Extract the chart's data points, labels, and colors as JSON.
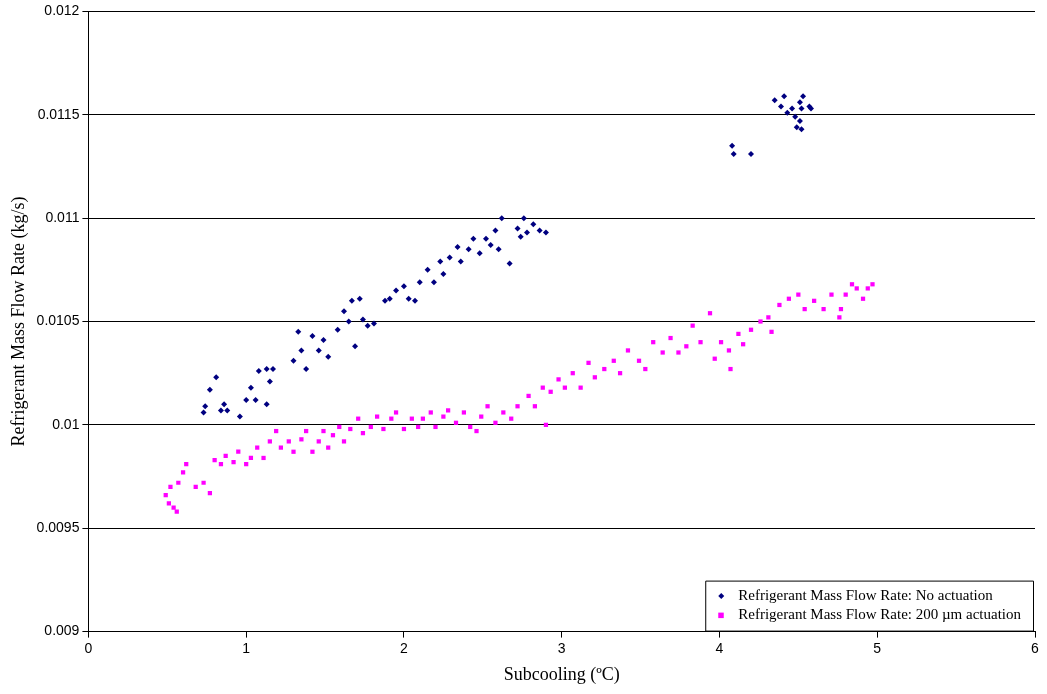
{
  "chart_data": {
    "type": "scatter",
    "xlabel": "Subcooling (ºC)",
    "ylabel": "Refrigerant Mass Flow Rate (kg/s)",
    "xlim": [
      0,
      6
    ],
    "xticks": [
      0,
      1,
      2,
      3,
      4,
      5,
      6
    ],
    "ylim": [
      0.009,
      0.012
    ],
    "yticks": [
      0.009,
      0.0095,
      0.01,
      0.0105,
      0.011,
      0.0115,
      0.012
    ],
    "grid": "y",
    "legend": "bottom right",
    "series": [
      {
        "name": "Refrigerant Mass Flow Rate: No actuation",
        "color": "#000080",
        "marker": "diamond",
        "x": [
          0.73,
          0.74,
          0.77,
          0.81,
          0.84,
          0.88,
          0.86,
          0.96,
          1.0,
          1.03,
          1.06,
          1.08,
          1.13,
          1.13,
          1.15,
          1.17,
          1.3,
          1.33,
          1.35,
          1.38,
          1.42,
          1.46,
          1.49,
          1.52,
          1.58,
          1.62,
          1.65,
          1.67,
          1.69,
          1.72,
          1.74,
          1.77,
          1.81,
          1.88,
          1.91,
          1.95,
          2.0,
          2.03,
          2.07,
          2.1,
          2.15,
          2.19,
          2.23,
          2.25,
          2.29,
          2.34,
          2.36,
          2.41,
          2.44,
          2.48,
          2.52,
          2.55,
          2.58,
          2.6,
          2.62,
          2.67,
          2.72,
          2.76,
          2.78,
          2.82,
          2.86,
          2.9,
          2.74,
          4.08,
          4.09,
          4.2,
          4.35,
          4.41,
          4.39,
          4.43,
          4.46,
          4.48,
          4.51,
          4.49,
          4.51,
          4.52,
          4.53,
          4.58,
          4.52,
          4.57
        ],
        "values": [
          0.01006,
          0.01009,
          0.01017,
          0.01023,
          0.01007,
          0.01007,
          0.0101,
          0.01004,
          0.01012,
          0.01018,
          0.01012,
          0.01026,
          0.01027,
          0.0101,
          0.01021,
          0.01027,
          0.01031,
          0.01045,
          0.01036,
          0.01027,
          0.01043,
          0.01036,
          0.01041,
          0.01033,
          0.01046,
          0.01055,
          0.0105,
          0.0106,
          0.01038,
          0.01061,
          0.01051,
          0.01048,
          0.01049,
          0.0106,
          0.01061,
          0.01065,
          0.01067,
          0.01061,
          0.0106,
          0.01069,
          0.01075,
          0.01069,
          0.01079,
          0.01073,
          0.01081,
          0.01086,
          0.01079,
          0.01085,
          0.0109,
          0.01083,
          0.0109,
          0.01087,
          0.01094,
          0.01085,
          0.011,
          0.01078,
          0.01095,
          0.011,
          0.01093,
          0.01097,
          0.01094,
          0.01093,
          0.01091,
          0.01135,
          0.01131,
          0.01131,
          0.01157,
          0.01159,
          0.01154,
          0.01151,
          0.01153,
          0.01149,
          0.01147,
          0.01144,
          0.01156,
          0.01153,
          0.01159,
          0.01153,
          0.01143,
          0.01154
        ]
      },
      {
        "name": "Refrigerant Mass Flow Rate: 200 µm actuation",
        "color": "#ff00ff",
        "marker": "square",
        "x": [
          0.49,
          0.51,
          0.54,
          0.56,
          0.52,
          0.57,
          0.6,
          0.62,
          0.68,
          0.73,
          0.77,
          0.8,
          0.84,
          0.87,
          0.92,
          0.95,
          1.0,
          1.03,
          1.07,
          1.11,
          1.15,
          1.19,
          1.22,
          1.27,
          1.3,
          1.35,
          1.38,
          1.42,
          1.46,
          1.49,
          1.52,
          1.55,
          1.59,
          1.62,
          1.66,
          1.71,
          1.74,
          1.79,
          1.83,
          1.87,
          1.92,
          1.95,
          2.0,
          2.05,
          2.09,
          2.12,
          2.17,
          2.2,
          2.25,
          2.28,
          2.33,
          2.38,
          2.42,
          2.46,
          2.49,
          2.53,
          2.58,
          2.63,
          2.68,
          2.72,
          2.79,
          2.83,
          2.88,
          2.9,
          2.93,
          2.98,
          3.02,
          3.07,
          3.12,
          3.17,
          3.21,
          3.27,
          3.33,
          3.37,
          3.42,
          3.49,
          3.53,
          3.58,
          3.64,
          3.69,
          3.74,
          3.79,
          3.83,
          3.88,
          3.94,
          3.97,
          4.01,
          4.06,
          4.07,
          4.12,
          4.15,
          4.2,
          4.26,
          4.31,
          4.33,
          4.38,
          4.44,
          4.5,
          4.54,
          4.6,
          4.66,
          4.71,
          4.76,
          4.8,
          4.84,
          4.87,
          4.91,
          4.94,
          4.97,
          4.77
        ],
        "values": [
          0.00966,
          0.00962,
          0.0096,
          0.00958,
          0.0097,
          0.00972,
          0.00977,
          0.00981,
          0.0097,
          0.00972,
          0.00967,
          0.00983,
          0.00981,
          0.00985,
          0.00982,
          0.00987,
          0.00981,
          0.00984,
          0.00989,
          0.00984,
          0.00992,
          0.00997,
          0.00989,
          0.00992,
          0.00987,
          0.00993,
          0.00997,
          0.00987,
          0.00992,
          0.00997,
          0.00989,
          0.00995,
          0.00999,
          0.00992,
          0.00998,
          0.01003,
          0.00996,
          0.00999,
          0.01004,
          0.00998,
          0.01003,
          0.01006,
          0.00998,
          0.01003,
          0.00999,
          0.01003,
          0.01006,
          0.00999,
          0.01004,
          0.01007,
          0.01001,
          0.01006,
          0.00999,
          0.00997,
          0.01004,
          0.01009,
          0.01001,
          0.01006,
          0.01003,
          0.01009,
          0.01014,
          0.01009,
          0.01018,
          0.01,
          0.01016,
          0.01022,
          0.01018,
          0.01025,
          0.01018,
          0.0103,
          0.01023,
          0.01027,
          0.01031,
          0.01025,
          0.01036,
          0.01031,
          0.01027,
          0.0104,
          0.01035,
          0.01042,
          0.01035,
          0.01038,
          0.01048,
          0.0104,
          0.01054,
          0.01032,
          0.0104,
          0.01036,
          0.01027,
          0.01044,
          0.01039,
          0.01046,
          0.0105,
          0.01052,
          0.01045,
          0.01058,
          0.01061,
          0.01063,
          0.01056,
          0.0106,
          0.01056,
          0.01063,
          0.01052,
          0.01063,
          0.01068,
          0.01066,
          0.01061,
          0.01066,
          0.01068,
          0.01056
        ]
      }
    ]
  }
}
